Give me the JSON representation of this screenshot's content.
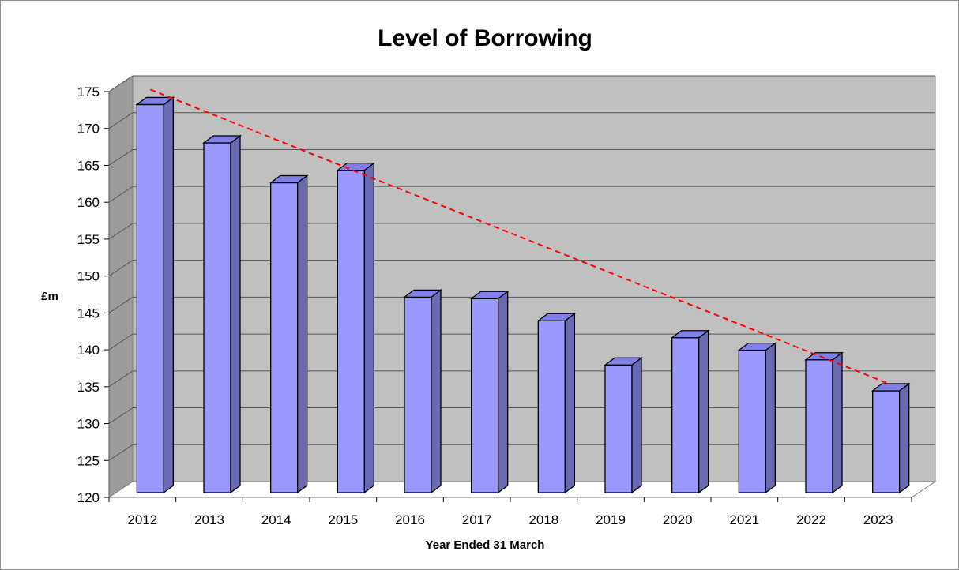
{
  "chart_data": {
    "type": "bar",
    "title": "Level of Borrowing",
    "xlabel": "Year Ended 31 March",
    "ylabel": "£m",
    "categories": [
      "2012",
      "2013",
      "2014",
      "2015",
      "2016",
      "2017",
      "2018",
      "2019",
      "2020",
      "2021",
      "2022",
      "2023"
    ],
    "values": [
      172.6,
      167.4,
      162.0,
      163.7,
      146.5,
      146.3,
      143.3,
      137.3,
      141.0,
      139.3,
      138.0,
      133.8
    ],
    "ylim": [
      120,
      175
    ],
    "yticks": [
      "120",
      "125",
      "130",
      "135",
      "140",
      "145",
      "150",
      "155",
      "160",
      "165",
      "170",
      "175"
    ],
    "grid": true,
    "legend": "none",
    "trendline": {
      "style": "dashed",
      "color": "#ff0000",
      "start": 174.2,
      "end": 134.4
    },
    "colors": {
      "bar_front": "#9999ff",
      "bar_side": "#6a6ab3",
      "bar_top": "#8080e6",
      "wall": "#c0c0c0",
      "floor": "#ffffff",
      "grid": "#000000"
    }
  }
}
